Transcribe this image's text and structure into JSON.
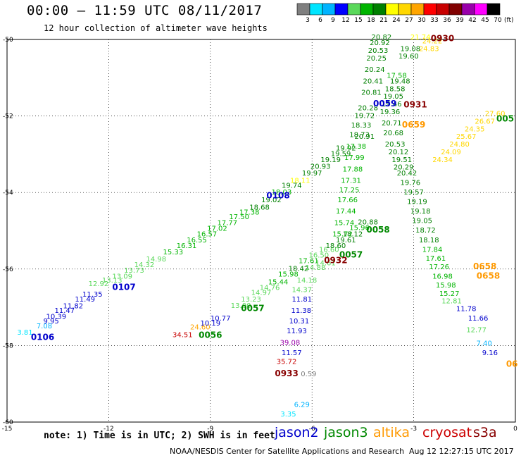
{
  "title": "00:00 – 11:59 UTC 08/11/2017",
  "subtitle": "12 hour collection of altimeter wave heights",
  "legend": {
    "unit_label": "(ft)",
    "ticks": [
      "3",
      "6",
      "9",
      "12",
      "15",
      "18",
      "21",
      "24",
      "27",
      "30",
      "33",
      "36",
      "39",
      "42",
      "45",
      "70"
    ],
    "colors": [
      "#7f7f7f",
      "#00e5ff",
      "#00b4ff",
      "#0000ff",
      "#5ad85a",
      "#00b400",
      "#008000",
      "#ffff00",
      "#ffd700",
      "#ffa500",
      "#ff0000",
      "#c80000",
      "#800000",
      "#9900aa",
      "#ff00ff",
      "#000000"
    ]
  },
  "note": "note: 1) Time is in UTC; 2) SWH is in feet",
  "satellites": [
    {
      "name": "jason2",
      "color": "#0000cc"
    },
    {
      "name": "jason3",
      "color": "#008800"
    },
    {
      "name": "altika",
      "color": "#ff9900"
    },
    {
      "name": "cryosat",
      "color": "#cc0000"
    },
    {
      "name": "s3a",
      "color": "#880000"
    }
  ],
  "footer_left": "NOAA/NESDIS Center for Satellite Applications and Research",
  "footer_right": "Aug 12 12:27:15 UTC 2017",
  "chart_data": {
    "type": "scatter",
    "title": "00:00 – 11:59 UTC 08/11/2017",
    "xlim": [
      -15,
      0
    ],
    "ylim": [
      -60,
      -50
    ],
    "x_ticks": [
      "-15",
      "-12",
      "-9",
      "-6",
      "-3",
      "0"
    ],
    "y_ticks": [
      "-50",
      "-52",
      "-54",
      "-56",
      "-58",
      "-60"
    ],
    "grid": true,
    "points": [
      {
        "x": -14.47,
        "y": -57.72,
        "label": "3.81",
        "color": "#00e5ff"
      },
      {
        "x": -13.9,
        "y": -57.55,
        "label": "7.08",
        "color": "#00b4ff"
      },
      {
        "x": -13.7,
        "y": -57.42,
        "label": "9.95",
        "color": "#0000cc"
      },
      {
        "x": -13.55,
        "y": -57.3,
        "label": "10.39",
        "color": "#0000cc"
      },
      {
        "x": -13.3,
        "y": -57.15,
        "label": "11.47",
        "color": "#0000cc"
      },
      {
        "x": -13.05,
        "y": -57.03,
        "label": "11.82",
        "color": "#0000cc"
      },
      {
        "x": -12.7,
        "y": -56.85,
        "label": "11.49",
        "color": "#0000cc"
      },
      {
        "x": -12.48,
        "y": -56.72,
        "label": "11.35",
        "color": "#0000cc"
      },
      {
        "x": -12.3,
        "y": -56.45,
        "label": "12.92",
        "color": "#5ad85a"
      },
      {
        "x": -11.9,
        "y": -56.35,
        "label": "13.13",
        "color": "#5ad85a"
      },
      {
        "x": -11.6,
        "y": -56.25,
        "label": "13.09",
        "color": "#5ad85a"
      },
      {
        "x": -11.25,
        "y": -56.1,
        "label": "13.73",
        "color": "#5ad85a"
      },
      {
        "x": -10.95,
        "y": -55.95,
        "label": "14.32",
        "color": "#5ad85a"
      },
      {
        "x": -10.6,
        "y": -55.8,
        "label": "14.98",
        "color": "#5ad85a"
      },
      {
        "x": -10.1,
        "y": -55.62,
        "label": "15.33",
        "color": "#00b400"
      },
      {
        "x": -9.7,
        "y": -55.45,
        "label": "16.31",
        "color": "#00b400"
      },
      {
        "x": -9.4,
        "y": -55.3,
        "label": "16.55",
        "color": "#00b400"
      },
      {
        "x": -9.1,
        "y": -55.15,
        "label": "16.57",
        "color": "#00b400"
      },
      {
        "x": -8.8,
        "y": -55.0,
        "label": "17.02",
        "color": "#00b400"
      },
      {
        "x": -8.5,
        "y": -54.85,
        "label": "17.77",
        "color": "#00b400"
      },
      {
        "x": -8.15,
        "y": -54.7,
        "label": "17.50",
        "color": "#00b400"
      },
      {
        "x": -7.85,
        "y": -54.58,
        "label": "17.38",
        "color": "#00b400"
      },
      {
        "x": -7.55,
        "y": -54.45,
        "label": "18.68",
        "color": "#008000"
      },
      {
        "x": -7.2,
        "y": -54.25,
        "label": "19.02",
        "color": "#008000"
      },
      {
        "x": -6.9,
        "y": -54.05,
        "label": "18.03",
        "color": "#00b400"
      },
      {
        "x": -6.6,
        "y": -53.88,
        "label": "19.74",
        "color": "#008000"
      },
      {
        "x": -6.35,
        "y": -53.75,
        "label": "18.11",
        "color": "#ffff00"
      },
      {
        "x": -6.0,
        "y": -53.55,
        "label": "19.97",
        "color": "#008000"
      },
      {
        "x": -5.75,
        "y": -53.38,
        "label": "20.93",
        "color": "#008000"
      },
      {
        "x": -5.45,
        "y": -53.2,
        "label": "19.19",
        "color": "#008000"
      },
      {
        "x": -5.15,
        "y": -53.05,
        "label": "19.59",
        "color": "#008000"
      },
      {
        "x": -5.0,
        "y": -52.9,
        "label": "19.92",
        "color": "#008000"
      },
      {
        "x": -4.45,
        "y": -52.6,
        "label": "20.91",
        "color": "#008000"
      },
      {
        "x": -6.1,
        "y": -58.8,
        "label": "0.59",
        "color": "#7f7f7f"
      },
      {
        "x": -6.3,
        "y": -59.6,
        "label": "6.29",
        "color": "#00b4ff"
      },
      {
        "x": -6.7,
        "y": -59.85,
        "label": "3.35",
        "color": "#00e5ff"
      },
      {
        "x": -9.3,
        "y": -57.58,
        "label": "24.60",
        "color": "#ffa500"
      },
      {
        "x": -9.82,
        "y": -57.78,
        "label": "34.51",
        "color": "#c80000"
      },
      {
        "x": -9.0,
        "y": -57.48,
        "label": "10.19",
        "color": "#0000cc"
      },
      {
        "x": -8.7,
        "y": -57.35,
        "label": "10.77",
        "color": "#0000cc"
      },
      {
        "x": -8.1,
        "y": -57.02,
        "label": "13.00",
        "color": "#5ad85a"
      },
      {
        "x": -7.8,
        "y": -56.85,
        "label": "13.23",
        "color": "#5ad85a"
      },
      {
        "x": -7.5,
        "y": -56.68,
        "label": "14.97",
        "color": "#5ad85a"
      },
      {
        "x": -7.25,
        "y": -56.55,
        "label": "14.76",
        "color": "#5ad85a"
      },
      {
        "x": -7.0,
        "y": -56.4,
        "label": "15.44",
        "color": "#00b400"
      },
      {
        "x": -6.7,
        "y": -56.2,
        "label": "15.98",
        "color": "#00b400"
      },
      {
        "x": -6.4,
        "y": -56.05,
        "label": "18.42",
        "color": "#008000"
      },
      {
        "x": -6.1,
        "y": -55.85,
        "label": "17.61",
        "color": "#00b400"
      },
      {
        "x": -5.8,
        "y": -55.7,
        "label": "16.50",
        "color": "#5ad85a"
      },
      {
        "x": -5.5,
        "y": -55.55,
        "label": "16.60",
        "color": "#5ad85a"
      },
      {
        "x": -5.3,
        "y": -55.45,
        "label": "18.60",
        "color": "#008000"
      },
      {
        "x": -5.0,
        "y": -55.3,
        "label": "19.61",
        "color": "#008000"
      },
      {
        "x": -4.8,
        "y": -55.15,
        "label": "18.12",
        "color": "#008000"
      },
      {
        "x": -4.6,
        "y": -54.98,
        "label": "15.96",
        "color": "#00b400"
      },
      {
        "x": -4.35,
        "y": -54.83,
        "label": "20.88",
        "color": "#008000"
      },
      {
        "x": -6.3,
        "y": -56.85,
        "label": "11.81",
        "color": "#0000cc"
      },
      {
        "x": -6.32,
        "y": -57.15,
        "label": "11.38",
        "color": "#0000cc"
      },
      {
        "x": -6.38,
        "y": -57.42,
        "label": "10.31",
        "color": "#0000cc"
      },
      {
        "x": -6.45,
        "y": -57.68,
        "label": "11.93",
        "color": "#0000cc"
      },
      {
        "x": -6.65,
        "y": -57.98,
        "label": "39.08",
        "color": "#9900aa"
      },
      {
        "x": -6.6,
        "y": -58.25,
        "label": "11.57",
        "color": "#0000cc"
      },
      {
        "x": -6.75,
        "y": -58.48,
        "label": "35.72",
        "color": "#c80000"
      },
      {
        "x": -6.3,
        "y": -56.6,
        "label": "14.37",
        "color": "#5ad85a"
      },
      {
        "x": -6.15,
        "y": -56.35,
        "label": "14.18",
        "color": "#5ad85a"
      },
      {
        "x": -5.9,
        "y": -56.02,
        "label": "14.88",
        "color": "#5ad85a"
      },
      {
        "x": -5.6,
        "y": -55.9,
        "label": "14.61",
        "color": "#5ad85a"
      },
      {
        "x": -5.1,
        "y": -55.15,
        "label": "15.72",
        "color": "#00b400"
      },
      {
        "x": -5.05,
        "y": -54.85,
        "label": "15.74",
        "color": "#00b400"
      },
      {
        "x": -5.0,
        "y": -54.55,
        "label": "17.44",
        "color": "#00b400"
      },
      {
        "x": -4.95,
        "y": -54.25,
        "label": "17.66",
        "color": "#00b400"
      },
      {
        "x": -4.9,
        "y": -54.0,
        "label": "17.25",
        "color": "#00b400"
      },
      {
        "x": -4.85,
        "y": -53.75,
        "label": "17.31",
        "color": "#00b400"
      },
      {
        "x": -4.8,
        "y": -53.45,
        "label": "17.88",
        "color": "#00b400"
      },
      {
        "x": -4.75,
        "y": -53.15,
        "label": "17.99",
        "color": "#00b400"
      },
      {
        "x": -4.7,
        "y": -52.85,
        "label": "17.38",
        "color": "#00b400"
      },
      {
        "x": -4.6,
        "y": -52.55,
        "label": "18.73",
        "color": "#008000"
      },
      {
        "x": -4.55,
        "y": -52.3,
        "label": "18.33",
        "color": "#008000"
      },
      {
        "x": -4.45,
        "y": -52.05,
        "label": "19.72",
        "color": "#008000"
      },
      {
        "x": -4.35,
        "y": -51.85,
        "label": "20.28",
        "color": "#008000"
      },
      {
        "x": -4.25,
        "y": -51.45,
        "label": "20.81",
        "color": "#008000"
      },
      {
        "x": -4.2,
        "y": -51.15,
        "label": "20.41",
        "color": "#008000"
      },
      {
        "x": -4.15,
        "y": -50.85,
        "label": "20.24",
        "color": "#008000"
      },
      {
        "x": -4.1,
        "y": -50.55,
        "label": "20.25",
        "color": "#008000"
      },
      {
        "x": -4.05,
        "y": -50.35,
        "label": "20.53",
        "color": "#008000"
      },
      {
        "x": -4.0,
        "y": -50.15,
        "label": "20.92",
        "color": "#008000"
      },
      {
        "x": -3.95,
        "y": -50.0,
        "label": "20.82",
        "color": "#008000"
      },
      {
        "x": -3.5,
        "y": -51.0,
        "label": "17.58",
        "color": "#00b400"
      },
      {
        "x": -3.4,
        "y": -51.15,
        "label": "19.48",
        "color": "#008000"
      },
      {
        "x": -3.55,
        "y": -51.35,
        "label": "18.58",
        "color": "#008000"
      },
      {
        "x": -3.6,
        "y": -51.55,
        "label": "19.05",
        "color": "#008000"
      },
      {
        "x": -3.65,
        "y": -51.75,
        "label": "19.46",
        "color": "#008000"
      },
      {
        "x": -3.7,
        "y": -51.95,
        "label": "19.36",
        "color": "#008000"
      },
      {
        "x": -3.65,
        "y": -52.25,
        "label": "20.71",
        "color": "#008000"
      },
      {
        "x": -3.6,
        "y": -52.5,
        "label": "20.68",
        "color": "#008000"
      },
      {
        "x": -3.55,
        "y": -52.8,
        "label": "20.53",
        "color": "#008000"
      },
      {
        "x": -3.45,
        "y": -53.0,
        "label": "20.12",
        "color": "#008000"
      },
      {
        "x": -3.35,
        "y": -53.2,
        "label": "19.51",
        "color": "#008000"
      },
      {
        "x": -3.3,
        "y": -53.4,
        "label": "20.29",
        "color": "#008000"
      },
      {
        "x": -3.2,
        "y": -53.55,
        "label": "20.42",
        "color": "#008000"
      },
      {
        "x": -3.1,
        "y": -53.8,
        "label": "19.76",
        "color": "#008000"
      },
      {
        "x": -3.0,
        "y": -54.05,
        "label": "19.57",
        "color": "#008000"
      },
      {
        "x": -2.9,
        "y": -54.3,
        "label": "19.19",
        "color": "#008000"
      },
      {
        "x": -2.8,
        "y": -54.55,
        "label": "19.18",
        "color": "#008000"
      },
      {
        "x": -2.75,
        "y": -54.8,
        "label": "19.05",
        "color": "#008000"
      },
      {
        "x": -2.65,
        "y": -55.05,
        "label": "18.72",
        "color": "#008000"
      },
      {
        "x": -2.55,
        "y": -55.3,
        "label": "18.18",
        "color": "#008000"
      },
      {
        "x": -2.45,
        "y": -55.55,
        "label": "17.84",
        "color": "#00b400"
      },
      {
        "x": -2.35,
        "y": -55.78,
        "label": "17.61",
        "color": "#00b400"
      },
      {
        "x": -2.25,
        "y": -56.0,
        "label": "17.26",
        "color": "#00b400"
      },
      {
        "x": -2.15,
        "y": -56.25,
        "label": "16.98",
        "color": "#00b400"
      },
      {
        "x": -2.05,
        "y": -56.48,
        "label": "15.98",
        "color": "#00b400"
      },
      {
        "x": -1.95,
        "y": -56.7,
        "label": "15.27",
        "color": "#00b400"
      },
      {
        "x": -1.88,
        "y": -56.9,
        "label": "12.81",
        "color": "#5ad85a"
      },
      {
        "x": -1.45,
        "y": -57.1,
        "label": "11.78",
        "color": "#0000cc"
      },
      {
        "x": -1.1,
        "y": -57.35,
        "label": "11.66",
        "color": "#0000cc"
      },
      {
        "x": -1.15,
        "y": -57.65,
        "label": "12.77",
        "color": "#5ad85a"
      },
      {
        "x": -0.92,
        "y": -58.0,
        "label": "7.40",
        "color": "#00b4ff"
      },
      {
        "x": -0.75,
        "y": -58.25,
        "label": "9.16",
        "color": "#0000cc"
      },
      {
        "x": -3.1,
        "y": -50.3,
        "label": "19.08",
        "color": "#008000"
      },
      {
        "x": -3.15,
        "y": -50.5,
        "label": "19.60",
        "color": "#008000"
      },
      {
        "x": -2.8,
        "y": -50.0,
        "label": "21.74",
        "color": "#ffff00"
      },
      {
        "x": -2.55,
        "y": -50.3,
        "label": "24.83",
        "color": "#ffd700"
      },
      {
        "x": -2.45,
        "y": -50.1,
        "label": "24.22",
        "color": "#ffd700"
      },
      {
        "x": -0.6,
        "y": -52.0,
        "label": "27.60",
        "color": "#ffd700"
      },
      {
        "x": -0.9,
        "y": -52.2,
        "label": "26.67",
        "color": "#ffd700"
      },
      {
        "x": -1.2,
        "y": -52.4,
        "label": "24.35",
        "color": "#ffd700"
      },
      {
        "x": -1.45,
        "y": -52.6,
        "label": "25.67",
        "color": "#ffd700"
      },
      {
        "x": -1.65,
        "y": -52.8,
        "label": "24.80",
        "color": "#ffd700"
      },
      {
        "x": -1.9,
        "y": -53.0,
        "label": "24.09",
        "color": "#ffd700"
      },
      {
        "x": -2.15,
        "y": -53.2,
        "label": "24.34",
        "color": "#ffd700"
      }
    ],
    "pass_labels": [
      {
        "x": -13.95,
        "y": -57.85,
        "label": "0106",
        "color": "#0000cc"
      },
      {
        "x": -11.55,
        "y": -56.55,
        "label": "0107",
        "color": "#0000cc"
      },
      {
        "x": -7.0,
        "y": -54.15,
        "label": "0108",
        "color": "#0000cc"
      },
      {
        "x": -9.0,
        "y": -57.8,
        "label": "0056",
        "color": "#008800"
      },
      {
        "x": -7.75,
        "y": -57.1,
        "label": "0057",
        "color": "#008800"
      },
      {
        "x": -4.85,
        "y": -55.7,
        "label": "0057",
        "color": "#008800"
      },
      {
        "x": -4.05,
        "y": -55.05,
        "label": "0058",
        "color": "#008800"
      },
      {
        "x": -3.85,
        "y": -51.75,
        "label": "0059",
        "color": "#0000cc"
      },
      {
        "x": -0.3,
        "y": -52.15,
        "label": "005",
        "color": "#008800"
      },
      {
        "x": -5.3,
        "y": -55.85,
        "label": "0932",
        "color": "#880000"
      },
      {
        "x": -2.95,
        "y": -51.78,
        "label": "0931",
        "color": "#880000"
      },
      {
        "x": -2.15,
        "y": -50.05,
        "label": "0930",
        "color": "#880000"
      },
      {
        "x": -6.75,
        "y": -58.8,
        "label": "0933",
        "color": "#880000"
      },
      {
        "x": -3.0,
        "y": -52.3,
        "label": "0659",
        "color": "#ff9900"
      },
      {
        "x": -0.9,
        "y": -56.0,
        "label": "0658",
        "color": "#ff9900"
      },
      {
        "x": -0.8,
        "y": -56.25,
        "label": "0658",
        "color": "#ff9900"
      },
      {
        "x": -0.1,
        "y": -58.55,
        "label": "06",
        "color": "#ff9900"
      }
    ]
  }
}
